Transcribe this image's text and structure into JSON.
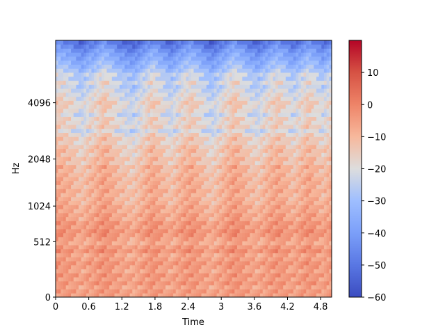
{
  "chart_data": {
    "type": "heatmap",
    "title": "",
    "xlabel": "Time",
    "ylabel": "Hz",
    "x_ticks": [
      "0",
      "0.6",
      "1.2",
      "1.8",
      "2.4",
      "3",
      "3.6",
      "4.2",
      "4.8"
    ],
    "x_tick_values": [
      0,
      0.6,
      1.2,
      1.8,
      2.4,
      3.0,
      3.6,
      4.2,
      4.8
    ],
    "xlim": [
      0,
      5.0
    ],
    "y_ticks": [
      "0",
      "512",
      "1024",
      "2048",
      "4096"
    ],
    "y_tick_values": [
      0,
      512,
      1024,
      2048,
      4096
    ],
    "y_scale": "mel",
    "ylim": [
      0,
      8192
    ],
    "colorbar": {
      "colormap": "coolwarm",
      "ticks": [
        "10",
        "0",
        "−10",
        "−20",
        "−30",
        "−40",
        "−50",
        "−60"
      ],
      "tick_values": [
        10,
        0,
        -10,
        -20,
        -30,
        -40,
        -50,
        -60
      ],
      "range": [
        -60,
        20
      ]
    },
    "time_frames": 108,
    "mel_bands": 64,
    "band_levels_db": [
      -5,
      -4,
      -6,
      -3,
      -5,
      -3,
      -6,
      -4,
      -3,
      -5,
      -6,
      -2,
      -4,
      -7,
      -5,
      -3,
      -2,
      -4,
      -3,
      -6,
      -5,
      -7,
      -6,
      -8,
      -8,
      -9,
      -7,
      -9,
      -8,
      -8,
      -9,
      -10,
      -8,
      -12,
      -10,
      -13,
      -11,
      -12,
      -15,
      -13,
      -16,
      -21,
      -15,
      -17,
      -16,
      -21,
      -17,
      -16,
      -15,
      -18,
      -19,
      -21,
      -23,
      -19,
      -24,
      -22,
      -27,
      -30,
      -32,
      -35,
      -37,
      -40,
      -44,
      -48
    ],
    "time_gain_db": [
      2,
      2,
      1,
      1,
      0,
      0,
      -1,
      -2,
      -3,
      -4,
      -4,
      -3,
      -2,
      -1,
      -1,
      0,
      1,
      2,
      3,
      3,
      2,
      1,
      0,
      -1,
      -2,
      -3,
      -3,
      -4,
      -4,
      -5,
      -5,
      -4,
      -3,
      -2,
      -1,
      0,
      1,
      2,
      2,
      1,
      0,
      -1,
      -2,
      -3,
      -4,
      -4,
      -3,
      -2,
      -1,
      0,
      1,
      1,
      2,
      2,
      1,
      0,
      -1,
      -2,
      -3,
      -4,
      -5,
      -5,
      -4,
      -3,
      -2,
      -1,
      0,
      1,
      2,
      3,
      3,
      2,
      1,
      0,
      -1,
      -2,
      -3,
      -3,
      -4,
      -4,
      -3,
      -2,
      -1,
      0,
      1,
      1,
      2,
      2,
      1,
      0,
      -1,
      -2,
      -3,
      -3,
      -2,
      -1,
      0,
      1,
      2,
      2,
      1,
      0,
      -1,
      -2,
      -3,
      -2,
      -1,
      0
    ]
  }
}
